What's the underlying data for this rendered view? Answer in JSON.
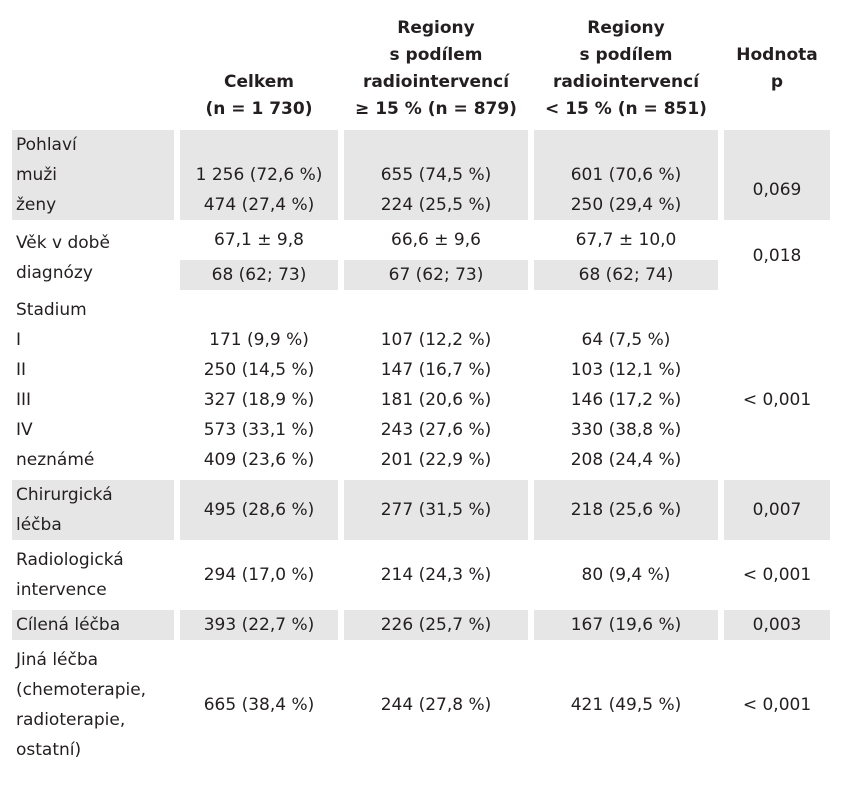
{
  "header": {
    "col1": [
      "Celkem",
      "(n = 1 730)"
    ],
    "col2": [
      "Regiony",
      "s podílem",
      "radiointervencí",
      "≥ 15 % (n = 879)"
    ],
    "col3": [
      "Regiony",
      "s podílem",
      "radiointervencí",
      "< 15 % (n = 851)"
    ],
    "col4": [
      "Hodnota",
      "p"
    ]
  },
  "rows": {
    "pohlavi": {
      "label": "Pohlaví",
      "muzi": {
        "label": "muži",
        "celkem": "1 256 (72,6 %)",
        "high": "655 (74,5 %)",
        "low": "601 (70,6 %)"
      },
      "zeny": {
        "label": "ženy",
        "celkem": "474 (27,4 %)",
        "high": "224 (25,5 %)",
        "low": "250 (29,4 %)"
      },
      "p": "0,069"
    },
    "vek": {
      "label": [
        "Věk v době",
        "diagnózy"
      ],
      "mean": {
        "celkem": "67,1 ± 9,8",
        "high": "66,6 ± 9,6",
        "low": "67,7 ± 10,0"
      },
      "median": {
        "celkem": "68 (62; 73)",
        "high": "67 (62; 73)",
        "low": "68 (62; 74)"
      },
      "p": "0,018"
    },
    "stadium": {
      "label": "Stadium",
      "items": [
        {
          "label": "I",
          "celkem": "171 (9,9 %)",
          "high": "107 (12,2 %)",
          "low": "64 (7,5 %)"
        },
        {
          "label": "II",
          "celkem": "250 (14,5 %)",
          "high": "147 (16,7 %)",
          "low": "103 (12,1 %)"
        },
        {
          "label": "III",
          "celkem": "327 (18,9 %)",
          "high": "181 (20,6 %)",
          "low": "146 (17,2 %)"
        },
        {
          "label": "IV",
          "celkem": "573 (33,1 %)",
          "high": "243 (27,6 %)",
          "low": "330 (38,8 %)"
        },
        {
          "label": "neznámé",
          "celkem": "409 (23,6 %)",
          "high": "201 (22,9 %)",
          "low": "208 (24,4 %)"
        }
      ],
      "p": "< 0,001"
    },
    "chirurgicka": {
      "label": [
        "Chirurgická",
        "léčba"
      ],
      "celkem": "495 (28,6 %)",
      "high": "277 (31,5 %)",
      "low": "218 (25,6 %)",
      "p": "0,007"
    },
    "radiologicka": {
      "label": [
        "Radiologická",
        "intervence"
      ],
      "celkem": "294 (17,0 %)",
      "high": "214 (24,3 %)",
      "low": "80 (9,4 %)",
      "p": "< 0,001"
    },
    "cilena": {
      "label": "Cílená léčba",
      "celkem": "393 (22,7 %)",
      "high": "226 (25,7 %)",
      "low": "167 (19,6 %)",
      "p": "0,003"
    },
    "jina": {
      "label": [
        "Jiná léčba",
        "(chemoterapie,",
        "radioterapie,",
        "ostatní)"
      ],
      "celkem": "665 (38,4 %)",
      "high": "244 (27,8 %)",
      "low": "421 (49,5 %)",
      "p": "< 0,001"
    }
  },
  "colors": {
    "shade": "#e6e6e6",
    "text": "#231f20"
  }
}
